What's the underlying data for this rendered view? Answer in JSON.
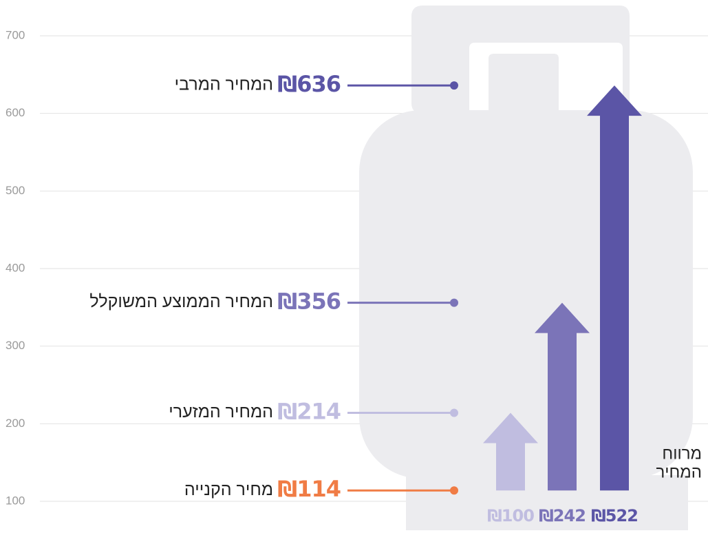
{
  "chart_data": {
    "type": "arrow-bar",
    "ylim": [
      100,
      700
    ],
    "yticks": [
      100,
      200,
      300,
      400,
      500,
      600,
      700
    ],
    "grid": true,
    "levels": {
      "names": [
        "המחיר המרבי",
        "המחיר הממוצע המשוקלל",
        "המחיר המזערי",
        "מחיר הקנייה"
      ],
      "values": [
        636,
        356,
        214,
        114
      ],
      "value_labels": [
        "₪636",
        "₪356",
        "₪214",
        "₪114"
      ],
      "colors": [
        "#5b55a6",
        "#7b74b8",
        "#c0bde0",
        "#f07c45"
      ]
    },
    "margins": {
      "label": [
        "מרווח",
        "המחיר"
      ],
      "values": [
        100,
        242,
        522
      ],
      "value_labels": [
        "₪100",
        "₪242",
        "₪522"
      ],
      "colors": [
        "#c0bde0",
        "#7b74b8",
        "#5b55a6"
      ]
    }
  }
}
